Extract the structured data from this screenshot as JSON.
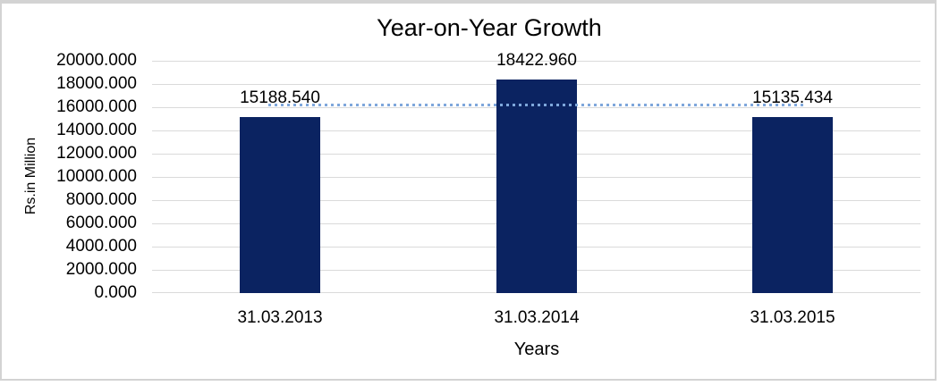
{
  "chart_data": {
    "type": "bar",
    "title": "Year-on-Year Growth",
    "xlabel": "Years",
    "ylabel": "Rs.in Million",
    "categories": [
      "31.03.2013",
      "31.03.2014",
      "31.03.2015"
    ],
    "values": [
      15188.54,
      18422.96,
      15135.434
    ],
    "data_labels": [
      "15188.540",
      "18422.960",
      "15135.434"
    ],
    "ylim": [
      0,
      20000
    ],
    "grid": true,
    "legend": false,
    "y_ticks": [
      {
        "value": 0,
        "label": "0.000"
      },
      {
        "value": 2000,
        "label": "2000.000"
      },
      {
        "value": 4000,
        "label": "4000.000"
      },
      {
        "value": 6000,
        "label": "6000.000"
      },
      {
        "value": 8000,
        "label": "8000.000"
      },
      {
        "value": 10000,
        "label": "10000.000"
      },
      {
        "value": 12000,
        "label": "12000.000"
      },
      {
        "value": 14000,
        "label": "14000.000"
      },
      {
        "value": 16000,
        "label": "16000.000"
      },
      {
        "value": 18000,
        "label": "18000.000"
      },
      {
        "value": 20000,
        "label": "20000.000"
      }
    ],
    "trendline": {
      "type": "linear",
      "style": "dotted",
      "value": 16248.978
    },
    "colors": {
      "bar": "#0b2361",
      "trendline": "#7ea7db",
      "gridline": "#dadada",
      "frame_border": "#d3d3d3",
      "text": "#000000",
      "background": "#ffffff"
    }
  }
}
